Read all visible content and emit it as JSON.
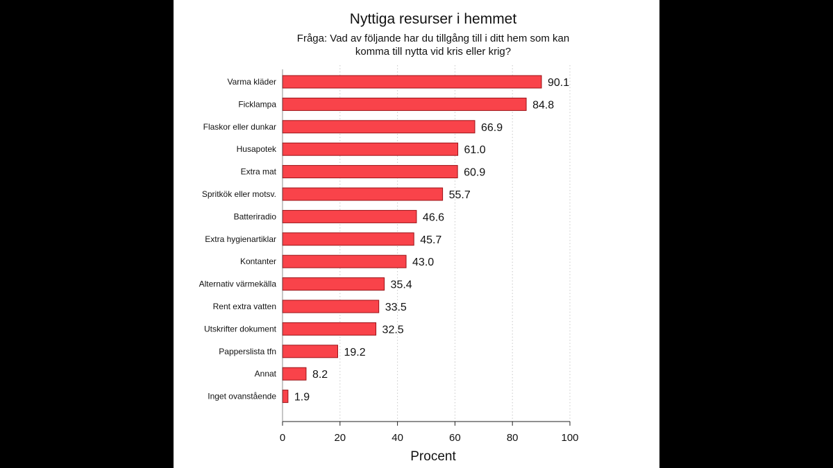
{
  "chart_data": {
    "type": "bar",
    "orientation": "horizontal",
    "title": "Nyttiga resurser i hemmet",
    "subtitle_lines": [
      "Fråga: Vad av följande har du tillgång till i ditt hem som kan",
      "komma till nytta vid kris eller krig?"
    ],
    "categories": [
      "Varma kläder",
      "Ficklampa",
      "Flaskor eller dunkar",
      "Husapotek",
      "Extra mat",
      "Spritkök eller motsv.",
      "Batteriradio",
      "Extra hygienartiklar",
      "Kontanter",
      "Alternativ värmekälla",
      "Rent extra vatten",
      "Utskrifter dokument",
      "Papperslista tfn",
      "Annat",
      "Inget ovanstående"
    ],
    "values": [
      90.1,
      84.8,
      66.9,
      61.0,
      60.9,
      55.7,
      46.6,
      45.7,
      43.0,
      35.4,
      33.5,
      32.5,
      19.2,
      8.2,
      1.9
    ],
    "value_labels": [
      "90.1",
      "84.8",
      "66.9",
      "61.0",
      "60.9",
      "55.7",
      "46.6",
      "45.7",
      "43.0",
      "35.4",
      "33.5",
      "32.5",
      "19.2",
      "8.2",
      "1.9"
    ],
    "xlabel": "Procent",
    "xlim": [
      0,
      100
    ],
    "xticks": [
      0,
      20,
      40,
      60,
      80,
      100
    ],
    "grid": "vertical dotted",
    "bar_color": "#f9434a",
    "bar_edge_color": "#9b1116"
  }
}
